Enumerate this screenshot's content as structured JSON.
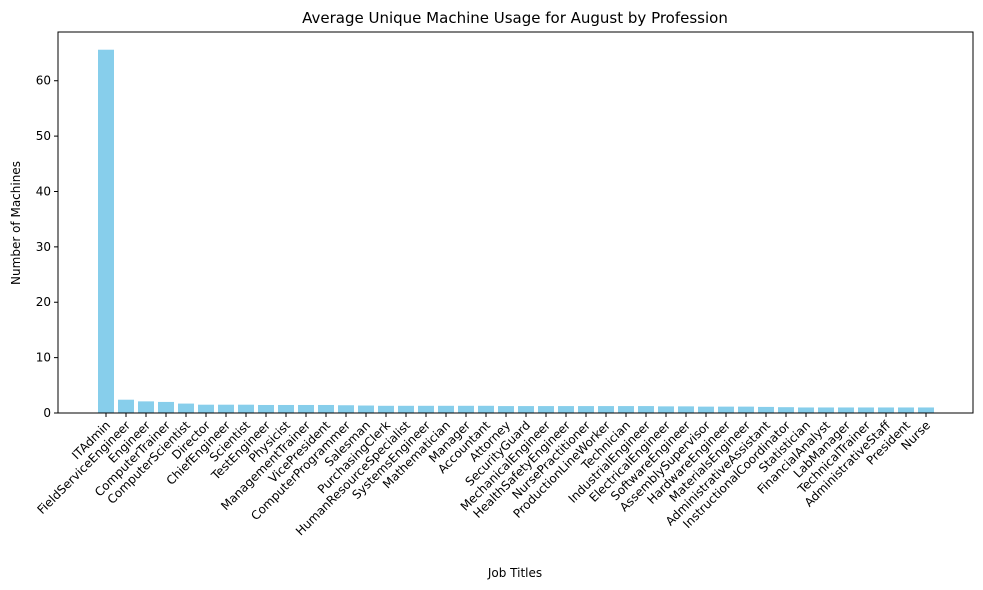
{
  "chart_data": {
    "type": "bar",
    "title": "Average Unique Machine Usage for August by Profession",
    "xlabel": "Job Titles",
    "ylabel": "Number of Machines",
    "ylim": [
      0,
      68.8
    ],
    "yticks": [
      0,
      10,
      20,
      30,
      40,
      50,
      60
    ],
    "bar_color": "#87ceeb",
    "grid": false,
    "categories": [
      "ITAdmin",
      "FieldServiceEngineer",
      "Engineer",
      "ComputerTrainer",
      "ComputerScientist",
      "Director",
      "ChiefEngineer",
      "Scientist",
      "TestEngineer",
      "Physicist",
      "ManagementTrainer",
      "VicePresident",
      "ComputerProgrammer",
      "Salesman",
      "PurchasingClerk",
      "HumanResourceSpecialist",
      "SystemsEngineer",
      "Mathematician",
      "Manager",
      "Accountant",
      "Attorney",
      "SecurityGuard",
      "MechanicalEngineer",
      "HealthSafetyEngineer",
      "NursePractitioner",
      "ProductionLineWorker",
      "Technician",
      "IndustrialEngineer",
      "ElectricalEngineer",
      "SoftwareEngineer",
      "AssemblySupervisor",
      "HardwareEngineer",
      "MaterialsEngineer",
      "AdministrativeAssistant",
      "InstructionalCoordinator",
      "Statistician",
      "FinancialAnalyst",
      "LabManager",
      "TechnicalTrainer",
      "AdministrativeStaff",
      "President",
      "Nurse"
    ],
    "values": [
      65.6,
      2.4,
      2.1,
      2.0,
      1.7,
      1.5,
      1.5,
      1.5,
      1.45,
      1.45,
      1.45,
      1.45,
      1.4,
      1.35,
      1.3,
      1.3,
      1.3,
      1.3,
      1.3,
      1.3,
      1.25,
      1.25,
      1.25,
      1.25,
      1.25,
      1.25,
      1.25,
      1.25,
      1.2,
      1.2,
      1.15,
      1.15,
      1.15,
      1.1,
      1.05,
      1.0,
      1.0,
      1.0,
      1.0,
      1.0,
      1.0,
      1.0
    ]
  }
}
